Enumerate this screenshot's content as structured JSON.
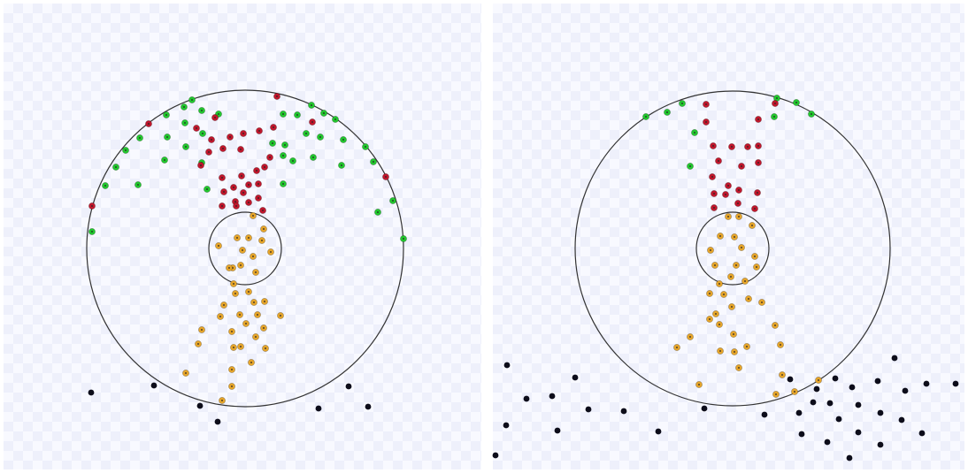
{
  "colors": {
    "outer_circle": "#333333",
    "red_particle": "#c0172c",
    "green_particle": "#22c72e",
    "orange_particle": "#e6a52a",
    "black_particle": "#0d0d1a"
  },
  "panels": [
    {
      "name": "left",
      "red": [
        [
          313,
          109
        ],
        [
          353,
          138
        ],
        [
          243,
          133
        ],
        [
          260,
          155
        ],
        [
          239,
          158
        ],
        [
          222,
          145
        ],
        [
          168,
          140
        ],
        [
          275,
          151
        ],
        [
          293,
          148
        ],
        [
          309,
          144
        ],
        [
          272,
          169
        ],
        [
          252,
          168
        ],
        [
          236,
          172
        ],
        [
          227,
          187
        ],
        [
          299,
          189
        ],
        [
          305,
          178
        ],
        [
          290,
          193
        ],
        [
          273,
          199
        ],
        [
          251,
          201
        ],
        [
          253,
          217
        ],
        [
          264,
          212
        ],
        [
          292,
          208
        ],
        [
          281,
          209
        ],
        [
          275,
          218
        ],
        [
          266,
          228
        ],
        [
          292,
          224
        ],
        [
          281,
          229
        ],
        [
          251,
          233
        ],
        [
          267,
          233
        ],
        [
          297,
          238
        ],
        [
          104,
          233
        ],
        [
          436,
          200
        ]
      ],
      "green": [
        [
          188,
          130
        ],
        [
          208,
          121
        ],
        [
          217,
          113
        ],
        [
          228,
          125
        ],
        [
          247,
          129
        ],
        [
          209,
          139
        ],
        [
          229,
          151
        ],
        [
          189,
          155
        ],
        [
          158,
          156
        ],
        [
          142,
          170
        ],
        [
          210,
          166
        ],
        [
          186,
          181
        ],
        [
          131,
          189
        ],
        [
          228,
          184
        ],
        [
          119,
          210
        ],
        [
          156,
          209
        ],
        [
          234,
          214
        ],
        [
          320,
          129
        ],
        [
          336,
          130
        ],
        [
          352,
          119
        ],
        [
          366,
          128
        ],
        [
          379,
          135
        ],
        [
          346,
          151
        ],
        [
          362,
          155
        ],
        [
          388,
          158
        ],
        [
          308,
          162
        ],
        [
          322,
          164
        ],
        [
          320,
          176
        ],
        [
          331,
          182
        ],
        [
          354,
          178
        ],
        [
          386,
          187
        ],
        [
          413,
          166
        ],
        [
          422,
          183
        ],
        [
          320,
          208
        ],
        [
          444,
          227
        ],
        [
          427,
          240
        ],
        [
          456,
          270
        ],
        [
          104,
          262
        ]
      ],
      "orange": [
        [
          286,
          244
        ],
        [
          298,
          259
        ],
        [
          268,
          269
        ],
        [
          281,
          269
        ],
        [
          306,
          285
        ],
        [
          296,
          272
        ],
        [
          274,
          283
        ],
        [
          286,
          290
        ],
        [
          247,
          278
        ],
        [
          272,
          300
        ],
        [
          289,
          308
        ],
        [
          263,
          303
        ],
        [
          264,
          321
        ],
        [
          281,
          330
        ],
        [
          299,
          341
        ],
        [
          266,
          332
        ],
        [
          287,
          342
        ],
        [
          271,
          356
        ],
        [
          253,
          345
        ],
        [
          249,
          358
        ],
        [
          317,
          357
        ],
        [
          278,
          366
        ],
        [
          291,
          356
        ],
        [
          262,
          375
        ],
        [
          289,
          381
        ],
        [
          298,
          371
        ],
        [
          272,
          392
        ],
        [
          300,
          394
        ],
        [
          264,
          393
        ],
        [
          284,
          410
        ],
        [
          262,
          418
        ],
        [
          210,
          422
        ],
        [
          228,
          373
        ],
        [
          224,
          389
        ],
        [
          262,
          437
        ],
        [
          251,
          453
        ],
        [
          259,
          303
        ]
      ],
      "black": [
        [
          103,
          444
        ],
        [
          174,
          436
        ],
        [
          226,
          459
        ],
        [
          246,
          477
        ],
        [
          360,
          462
        ],
        [
          394,
          437
        ],
        [
          416,
          460
        ]
      ]
    },
    {
      "name": "right",
      "red": [
        [
          798,
          118
        ],
        [
          798,
          138
        ],
        [
          857,
          135
        ],
        [
          876,
          117
        ],
        [
          806,
          165
        ],
        [
          827,
          166
        ],
        [
          845,
          166
        ],
        [
          857,
          165
        ],
        [
          857,
          184
        ],
        [
          812,
          182
        ],
        [
          838,
          188
        ],
        [
          805,
          200
        ],
        [
          823,
          210
        ],
        [
          835,
          215
        ],
        [
          856,
          218
        ],
        [
          807,
          219
        ],
        [
          820,
          220
        ],
        [
          834,
          230
        ],
        [
          853,
          236
        ],
        [
          807,
          235
        ]
      ],
      "green": [
        [
          730,
          132
        ],
        [
          754,
          127
        ],
        [
          771,
          117
        ],
        [
          785,
          150
        ],
        [
          780,
          188
        ],
        [
          878,
          111
        ],
        [
          900,
          116
        ],
        [
          875,
          132
        ],
        [
          917,
          129
        ]
      ],
      "orange": [
        [
          823,
          245
        ],
        [
          835,
          245
        ],
        [
          850,
          255
        ],
        [
          814,
          267
        ],
        [
          830,
          268
        ],
        [
          838,
          280
        ],
        [
          853,
          290
        ],
        [
          803,
          283
        ],
        [
          808,
          300
        ],
        [
          832,
          300
        ],
        [
          855,
          302
        ],
        [
          826,
          313
        ],
        [
          842,
          318
        ],
        [
          813,
          321
        ],
        [
          802,
          332
        ],
        [
          818,
          333
        ],
        [
          846,
          338
        ],
        [
          827,
          347
        ],
        [
          809,
          355
        ],
        [
          813,
          367
        ],
        [
          861,
          342
        ],
        [
          829,
          378
        ],
        [
          876,
          368
        ],
        [
          780,
          381
        ],
        [
          765,
          393
        ],
        [
          844,
          392
        ],
        [
          830,
          398
        ],
        [
          882,
          390
        ],
        [
          814,
          397
        ],
        [
          835,
          416
        ],
        [
          884,
          424
        ],
        [
          790,
          435
        ],
        [
          877,
          446
        ],
        [
          898,
          443
        ],
        [
          925,
          430
        ],
        [
          802,
          361
        ]
      ],
      "black": [
        [
          573,
          413
        ],
        [
          650,
          427
        ],
        [
          595,
          451
        ],
        [
          624,
          448
        ],
        [
          665,
          463
        ],
        [
          572,
          481
        ],
        [
          630,
          487
        ],
        [
          705,
          465
        ],
        [
          744,
          488
        ],
        [
          796,
          462
        ],
        [
          864,
          469
        ],
        [
          560,
          515
        ],
        [
          1011,
          405
        ],
        [
          944,
          428
        ],
        [
          963,
          438
        ],
        [
          923,
          440
        ],
        [
          893,
          429
        ],
        [
          992,
          431
        ],
        [
          1023,
          442
        ],
        [
          1047,
          434
        ],
        [
          1080,
          434
        ],
        [
          938,
          456
        ],
        [
          970,
          458
        ],
        [
          919,
          455
        ],
        [
          903,
          467
        ],
        [
          948,
          474
        ],
        [
          995,
          467
        ],
        [
          1019,
          475
        ],
        [
          906,
          491
        ],
        [
          935,
          500
        ],
        [
          970,
          489
        ],
        [
          1042,
          490
        ],
        [
          995,
          503
        ],
        [
          960,
          518
        ]
      ]
    }
  ]
}
